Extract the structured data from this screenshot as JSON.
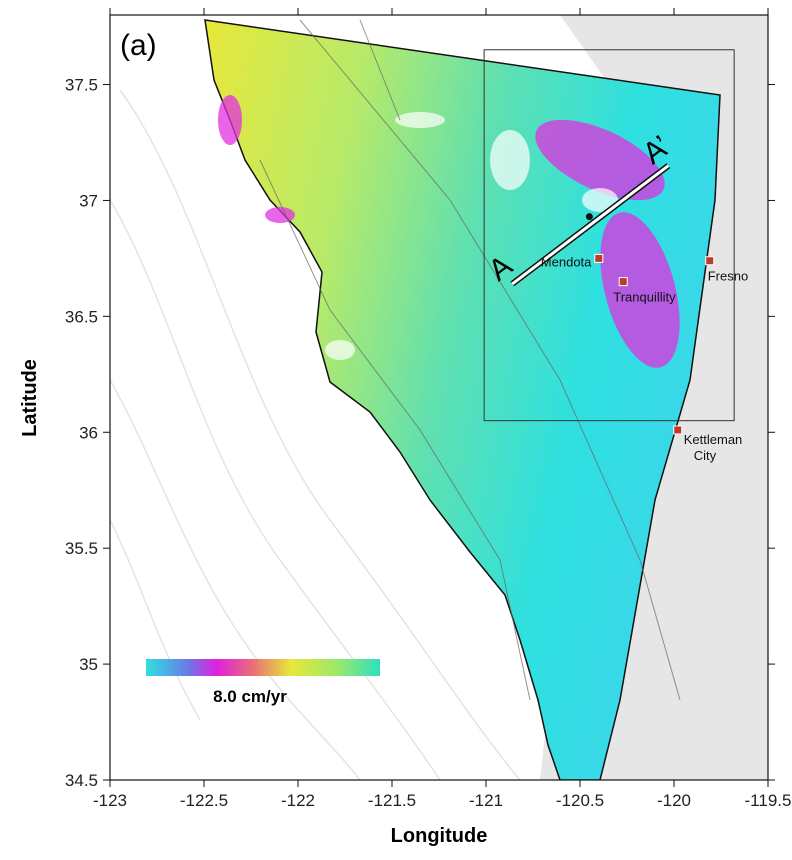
{
  "chart_data": {
    "type": "map",
    "panel_label": "(a)",
    "xlabel": "Longitude",
    "ylabel": "Latitude",
    "xlim": [
      -123,
      -119.5
    ],
    "ylim": [
      34.5,
      37.8
    ],
    "xticks": [
      -123,
      -122.5,
      -122,
      -121.5,
      -121,
      -120.5,
      -120,
      -119.5
    ],
    "yticks": [
      34.5,
      35,
      35.5,
      36,
      36.5,
      37,
      37.5
    ],
    "points": [
      {
        "name": [
          "Mendota"
        ],
        "lon": -120.4,
        "lat": 36.75,
        "color": "#c0392b"
      },
      {
        "name": [
          "Tranquillity"
        ],
        "lon": -120.27,
        "lat": 36.65,
        "color": "#c0392b"
      },
      {
        "name": [
          "Fresno"
        ],
        "lon": -119.81,
        "lat": 36.74,
        "color": "#c0392b"
      },
      {
        "name": [
          "Kettleman",
          "City"
        ],
        "lon": -119.98,
        "lat": 36.01,
        "color": "#c0392b"
      }
    ],
    "profile": {
      "start_label": "A",
      "end_label": "A’",
      "lon": [
        -120.86,
        -120.03
      ],
      "lat": [
        36.64,
        37.15
      ],
      "center": {
        "lon": -120.45,
        "lat": 36.93
      }
    },
    "box": {
      "lon": [
        -121.01,
        -119.68
      ],
      "lat": [
        36.05,
        37.65
      ]
    },
    "colorbar_label": "8.0 cm/yr"
  }
}
